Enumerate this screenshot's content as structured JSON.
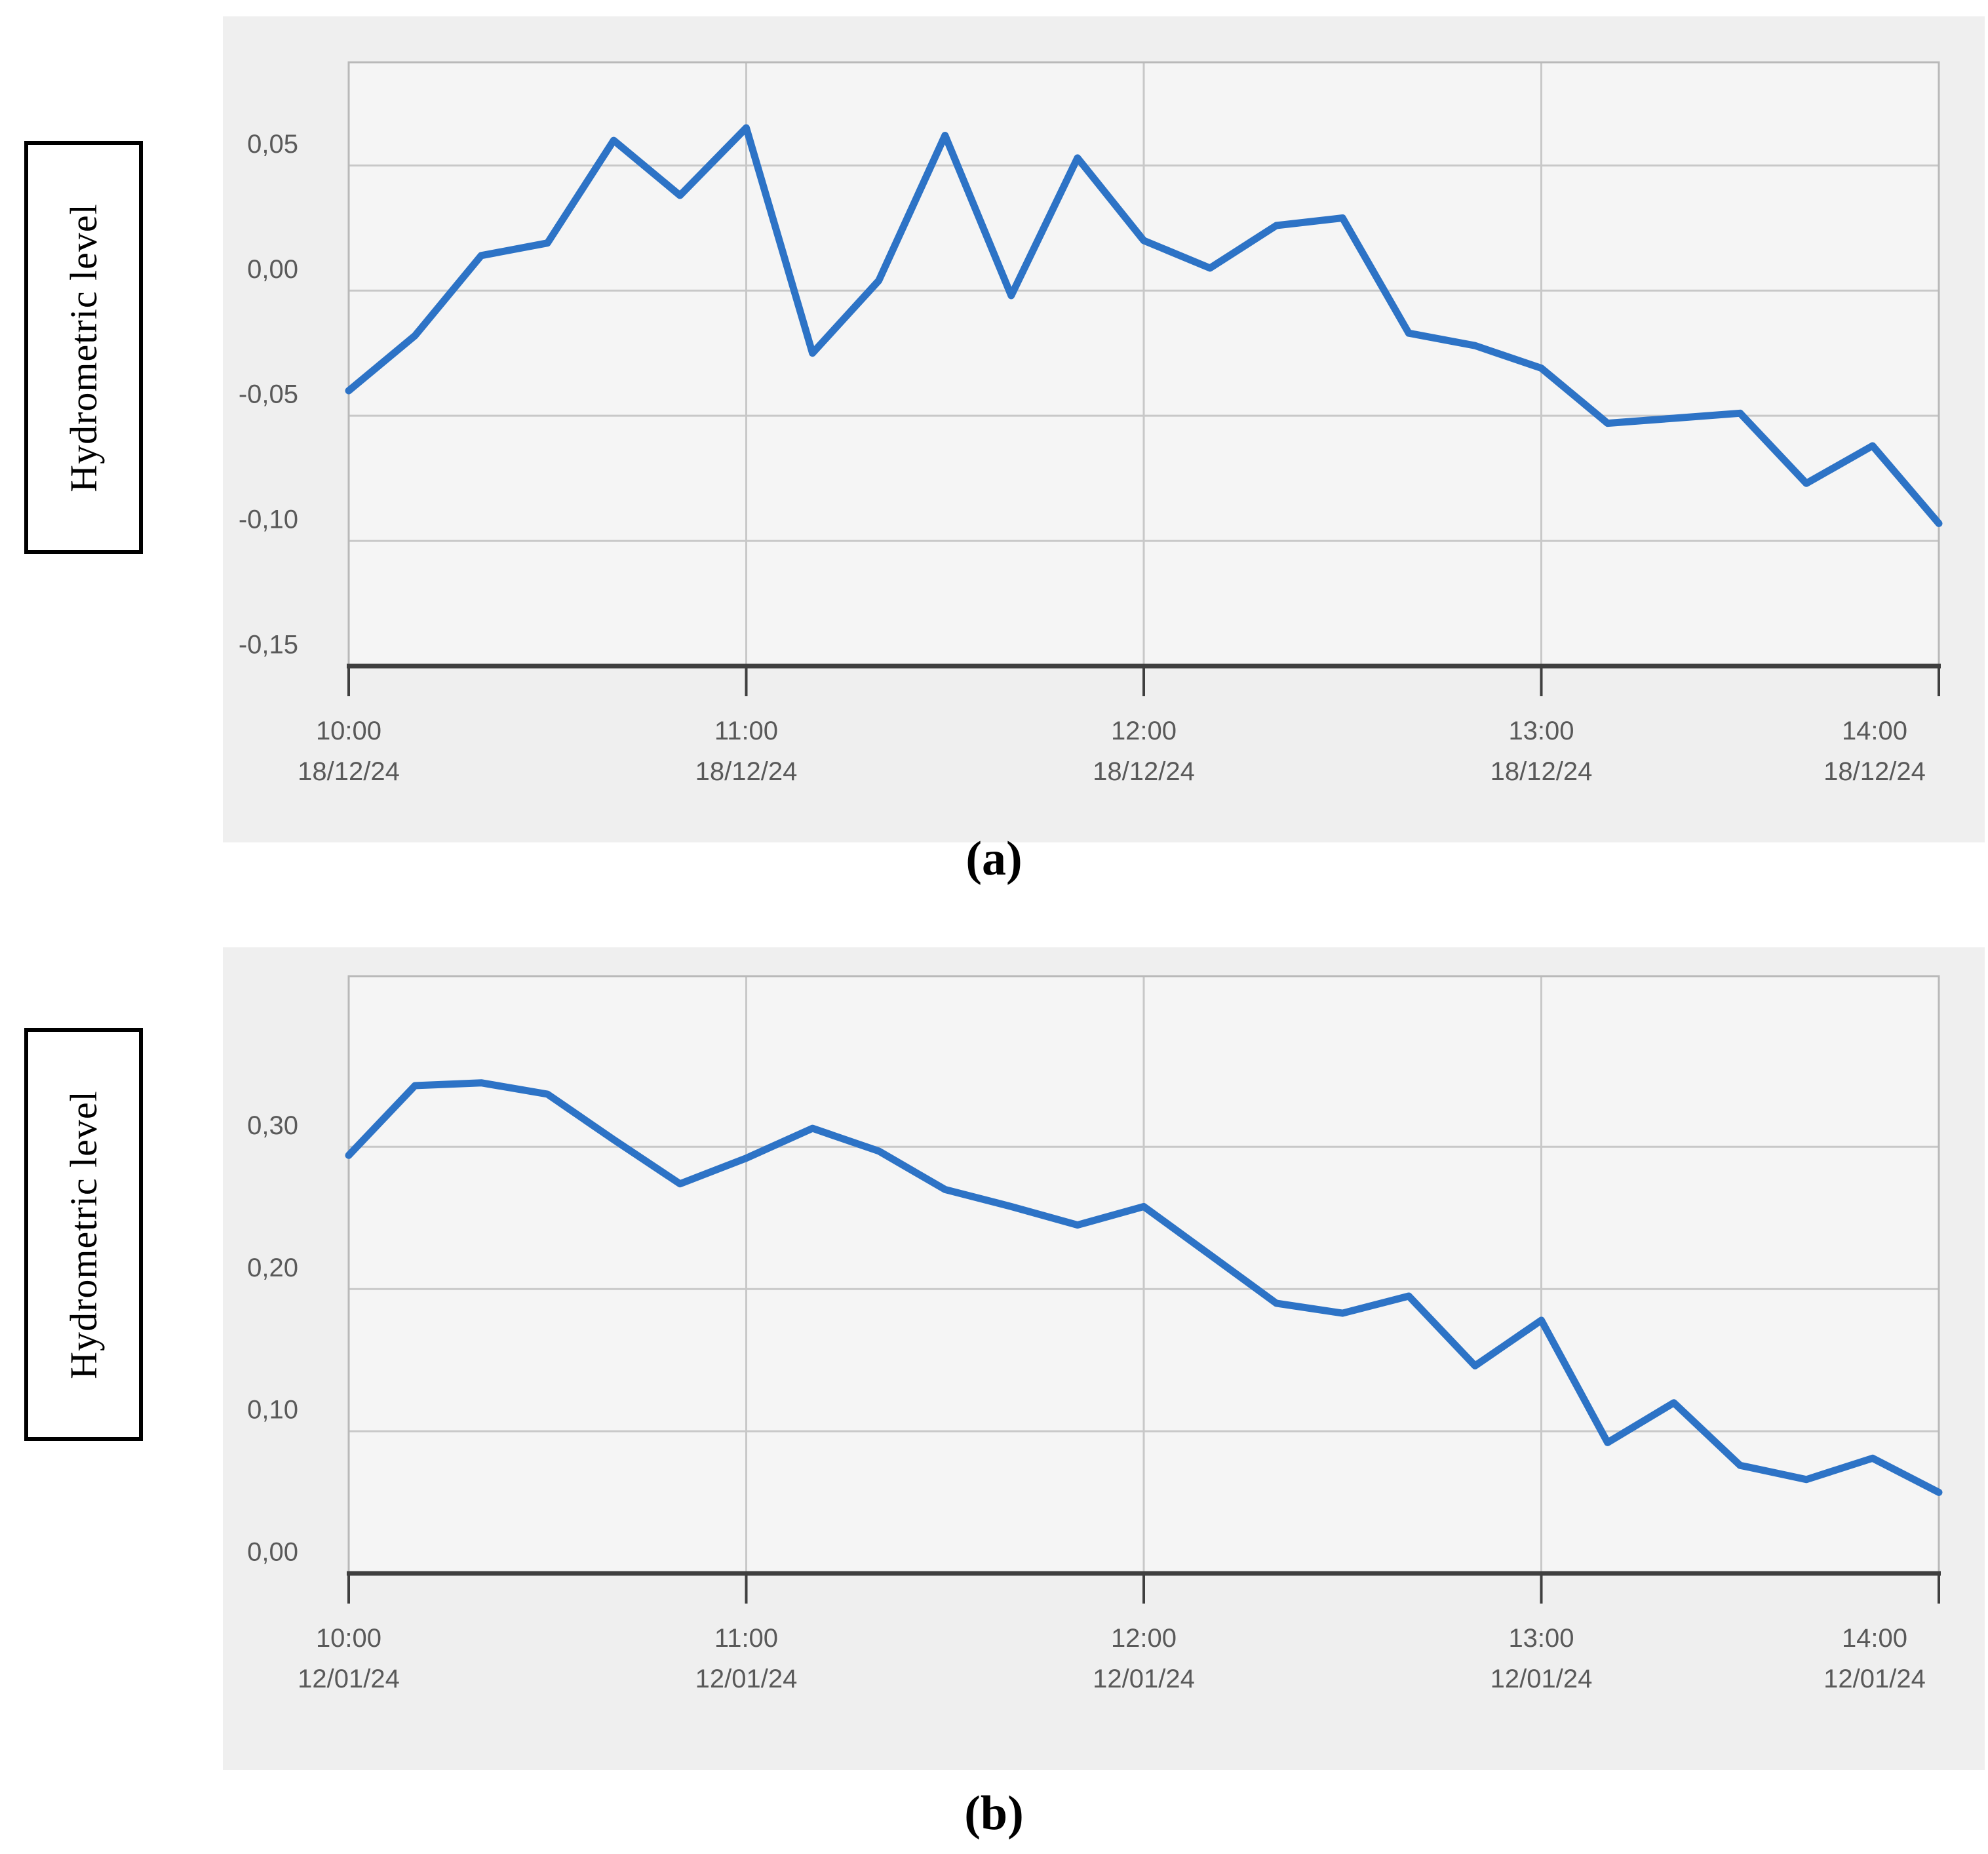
{
  "figure": {
    "captions": {
      "a": "(a)",
      "b": "(b)"
    },
    "y_axis_box_label": "Hydrometric level"
  },
  "colors": {
    "line_blue": "#2d73c6",
    "panel_background": "#efefef",
    "plot_background": "#f5f5f5",
    "gridline": "#c8c8c8",
    "plot_border": "#b9b9b9",
    "axis_dark": "#3f3f3f",
    "tick_label": "#595959",
    "text": "#000000"
  },
  "chart_data": [
    {
      "id": "a",
      "type": "line",
      "title": "",
      "ylabel": "Hydrometric level",
      "caption": "(a)",
      "legend": "none",
      "grid": true,
      "ylim": [
        -0.15,
        0.0912
      ],
      "y_ticks": [
        {
          "label": "0,05",
          "value": 0.05
        },
        {
          "label": "0,00",
          "value": 0.0
        },
        {
          "label": "-0,05",
          "value": -0.05
        },
        {
          "label": "-0,10",
          "value": -0.1
        },
        {
          "label": "-0,15",
          "value": -0.15
        }
      ],
      "x_start_time": "10:00",
      "x_step_minutes": 10,
      "x_total_minutes": 240,
      "x_ticks": [
        {
          "minutes": 0,
          "time": "10:00",
          "date": "18/12/24"
        },
        {
          "minutes": 60,
          "time": "11:00",
          "date": "18/12/24"
        },
        {
          "minutes": 120,
          "time": "12:00",
          "date": "18/12/24"
        },
        {
          "minutes": 180,
          "time": "13:00",
          "date": "18/12/24"
        },
        {
          "minutes": 240,
          "time": "14:00",
          "date": "18/12/24"
        }
      ],
      "values": [
        -0.04,
        -0.018,
        0.014,
        0.019,
        0.06,
        0.038,
        0.065,
        -0.025,
        0.004,
        0.062,
        -0.002,
        0.053,
        0.02,
        0.009,
        0.026,
        0.029,
        -0.017,
        -0.022,
        -0.031,
        -0.053,
        -0.051,
        -0.049,
        -0.077,
        -0.062,
        -0.093
      ]
    },
    {
      "id": "b",
      "type": "line",
      "title": "",
      "ylabel": "Hydrometric level",
      "caption": "(b)",
      "legend": "none",
      "grid": true,
      "ylim": [
        0.0,
        0.42
      ],
      "y_ticks": [
        {
          "label": "0,30",
          "value": 0.3
        },
        {
          "label": "0,20",
          "value": 0.2
        },
        {
          "label": "0,10",
          "value": 0.1
        },
        {
          "label": "0,00",
          "value": 0.0
        }
      ],
      "x_start_time": "10:00",
      "x_step_minutes": 10,
      "x_total_minutes": 240,
      "x_ticks": [
        {
          "minutes": 0,
          "time": "10:00",
          "date": "12/01/24"
        },
        {
          "minutes": 60,
          "time": "11:00",
          "date": "12/01/24"
        },
        {
          "minutes": 120,
          "time": "12:00",
          "date": "12/01/24"
        },
        {
          "minutes": 180,
          "time": "13:00",
          "date": "12/01/24"
        },
        {
          "minutes": 240,
          "time": "14:00",
          "date": "12/01/24"
        }
      ],
      "values": [
        0.294,
        0.343,
        0.345,
        0.337,
        0.305,
        0.274,
        0.292,
        0.313,
        0.297,
        0.27,
        0.258,
        0.245,
        0.258,
        0.224,
        0.19,
        0.183,
        0.195,
        0.146,
        0.178,
        0.092,
        0.12,
        0.076,
        0.066,
        0.081,
        0.057
      ]
    }
  ]
}
